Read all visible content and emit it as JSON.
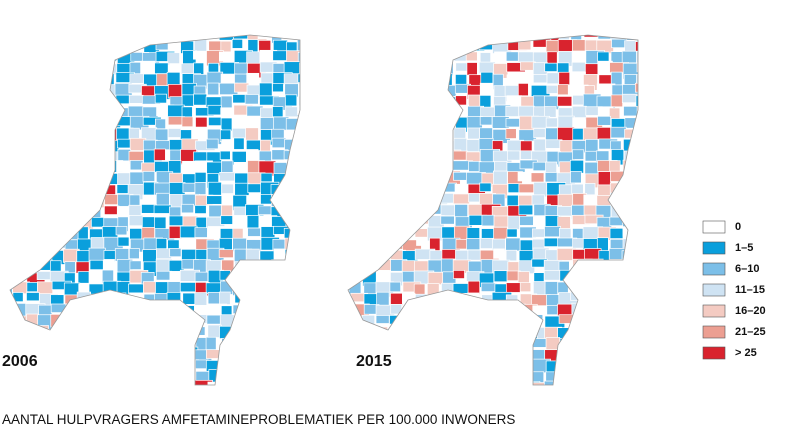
{
  "maps": [
    {
      "year": "2006"
    },
    {
      "year": "2015"
    }
  ],
  "legend": {
    "items": [
      {
        "label": "0",
        "color": "#ffffff"
      },
      {
        "label": "1–5",
        "color": "#0a9fdc"
      },
      {
        "label": "6–10",
        "color": "#7cbfe8"
      },
      {
        "label": "11–15",
        "color": "#cfe3f3"
      },
      {
        "label": "16–20",
        "color": "#f4cbc2"
      },
      {
        "label": "21–25",
        "color": "#ec9f92"
      },
      {
        "label": "> 25",
        "color": "#d9232e"
      }
    ]
  },
  "caption": "AANTAL HULPVRAGERS AMFETAMINEPROBLEMATIEK PER 100.000 INWONERS"
}
